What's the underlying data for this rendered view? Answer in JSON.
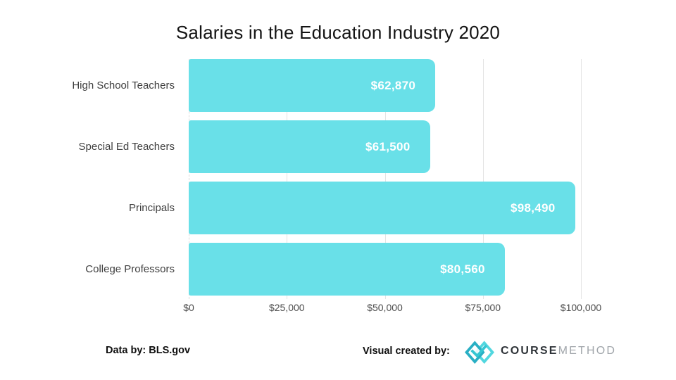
{
  "title": "Salaries in the Education Industry 2020",
  "chart_data": {
    "type": "bar",
    "orientation": "horizontal",
    "title": "Salaries in the Education Industry 2020",
    "categories": [
      "High School Teachers",
      "Special Ed Teachers",
      "Principals",
      "College Professors"
    ],
    "values": [
      62870,
      61500,
      98490,
      80560
    ],
    "value_labels": [
      "$62,870",
      "$61,500",
      "$98,490",
      "$80,560"
    ],
    "x_ticks": [
      "$0",
      "$25,000",
      "$50,000",
      "$75,000",
      "$100,000"
    ],
    "xlim": [
      0,
      100000
    ],
    "grid": "vertical-light",
    "legend": "none",
    "bar_color": "#69e0e8",
    "value_label_color": "#ffffff",
    "gridline_color": "#e4e4e4"
  },
  "footer": {
    "source_text": "Data by: BLS.gov",
    "credit_text": "Visual created by:",
    "brand": {
      "icon": "coursemethod-logo-icon",
      "name_bold": "COURSE",
      "name_light": "METHOD",
      "teal_dark": "#29afc4",
      "teal_light": "#52d7df"
    }
  }
}
